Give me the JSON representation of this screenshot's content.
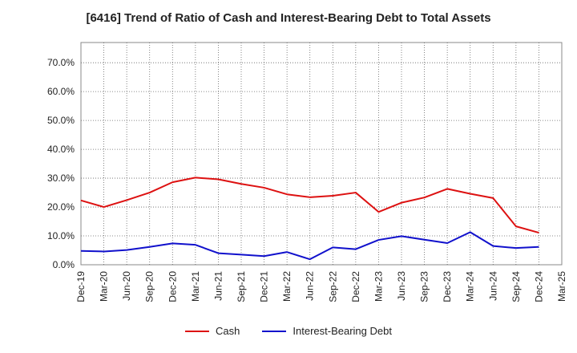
{
  "chart_data": {
    "type": "line",
    "title": "[6416]  Trend of Ratio of Cash and Interest-Bearing Debt to Total Assets",
    "xlabel": "",
    "ylabel": "",
    "ylim": [
      0,
      77
    ],
    "yticks": [
      0,
      10,
      20,
      30,
      40,
      50,
      60,
      70
    ],
    "ytick_labels": [
      "0.0%",
      "10.0%",
      "20.0%",
      "30.0%",
      "40.0%",
      "50.0%",
      "60.0%",
      "70.0%"
    ],
    "grid": true,
    "legend_position": "bottom",
    "x": [
      "Dec-19",
      "Mar-20",
      "Jun-20",
      "Sep-20",
      "Dec-20",
      "Mar-21",
      "Jun-21",
      "Sep-21",
      "Dec-21",
      "Mar-22",
      "Jun-22",
      "Sep-22",
      "Dec-22",
      "Mar-23",
      "Jun-23",
      "Sep-23",
      "Dec-23",
      "Mar-24",
      "Jun-24",
      "Sep-24",
      "Dec-24",
      "Mar-25"
    ],
    "series": [
      {
        "name": "Cash",
        "color": "#dd1111",
        "values": [
          22.3,
          20.0,
          22.4,
          25.0,
          28.6,
          30.2,
          29.6,
          28.0,
          26.7,
          24.4,
          23.4,
          23.9,
          25.0,
          18.3,
          21.5,
          23.3,
          26.3,
          24.6,
          23.1,
          13.3,
          11.1,
          null
        ]
      },
      {
        "name": "Interest-Bearing Debt",
        "color": "#1111cc",
        "values": [
          4.8,
          4.6,
          5.1,
          6.2,
          7.4,
          6.9,
          4.0,
          3.5,
          3.0,
          4.4,
          1.9,
          6.0,
          5.4,
          8.6,
          9.9,
          8.7,
          7.5,
          11.3,
          6.5,
          5.8,
          6.2,
          null
        ]
      }
    ]
  }
}
